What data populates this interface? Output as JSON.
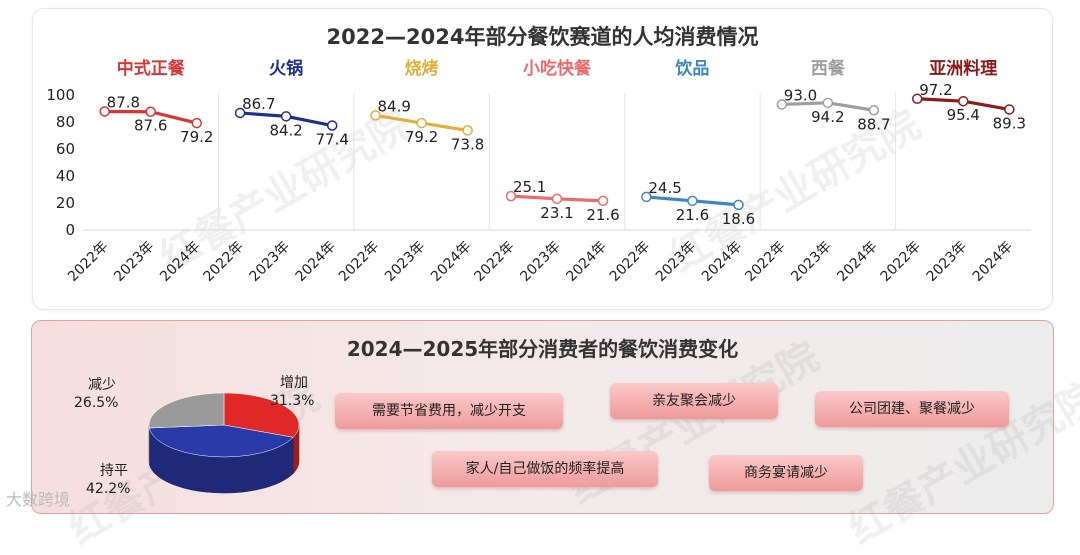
{
  "top_title": "2022—2024年部分餐饮赛道的人均消费情况",
  "bottom_title": "2024—2025年部分消费者的餐饮消费变化",
  "watermark": "红餐产业研究院",
  "footer_logo": "大数跨境",
  "chart_data": [
    {
      "type": "line",
      "title": "2022—2024年部分餐饮赛道的人均消费情况",
      "categories": [
        "2022年",
        "2023年",
        "2024年"
      ],
      "ylim": [
        0,
        100
      ],
      "yticks": [
        0,
        20,
        40,
        60,
        80,
        100
      ],
      "grid": false,
      "series": [
        {
          "name": "中式正餐",
          "color": "#d93535",
          "values": [
            87.8,
            87.6,
            79.2
          ],
          "labels": [
            "87.8",
            "87.6",
            "79.2"
          ]
        },
        {
          "name": "火锅",
          "color": "#1f2f8c",
          "values": [
            86.7,
            84.2,
            77.4
          ],
          "labels": [
            "86.7",
            "84.2",
            "77.4"
          ]
        },
        {
          "name": "烧烤",
          "color": "#e0b13a",
          "values": [
            84.9,
            79.2,
            73.8
          ],
          "labels": [
            "84.9",
            "79.2",
            "73.8"
          ]
        },
        {
          "name": "小吃快餐",
          "color": "#ec6a6a",
          "values": [
            25.1,
            23.1,
            21.6
          ],
          "labels": [
            "25.1",
            "23.1",
            "21.6"
          ]
        },
        {
          "name": "饮品",
          "color": "#3d86bf",
          "values": [
            24.5,
            21.6,
            18.6
          ],
          "labels": [
            "24.5",
            "21.6",
            "18.6"
          ]
        },
        {
          "name": "西餐",
          "color": "#9e9e9e",
          "values": [
            93.0,
            94.2,
            88.7
          ],
          "labels": [
            "93.0",
            "94.2",
            "88.7"
          ]
        },
        {
          "name": "亚洲料理",
          "color": "#8b1a1a",
          "values": [
            97.2,
            95.4,
            89.3
          ],
          "labels": [
            "97.2",
            "95.4",
            "89.3"
          ]
        }
      ]
    },
    {
      "type": "pie",
      "title": "2024—2025年部分消费者的餐饮消费变化",
      "slices": [
        {
          "name": "增加",
          "value": 31.3,
          "label": "31.3%",
          "color": "#e02828"
        },
        {
          "name": "持平",
          "value": 42.2,
          "label": "42.2%",
          "color": "#2a3aa8"
        },
        {
          "name": "减少",
          "value": 26.5,
          "label": "26.5%",
          "color": "#9a9a9a"
        }
      ]
    }
  ],
  "reasons": [
    "需要节省费用，减少开支",
    "亲友聚会减少",
    "公司团建、聚餐减少",
    "家人/自己做饭的频率提高",
    "商务宴请减少"
  ]
}
